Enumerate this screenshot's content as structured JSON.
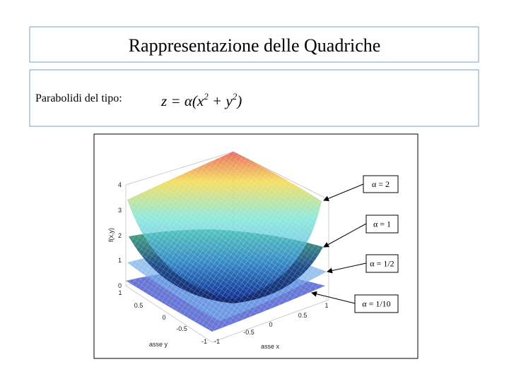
{
  "header": {
    "title": "Rappresentazione delle Quadriche"
  },
  "subtitle": {
    "text": "Parabolidi del tipo:",
    "formula": {
      "lhs": "z = α(x",
      "exp1": "2",
      "mid": " + y",
      "exp2": "2",
      "rhs": ")"
    }
  },
  "figure": {
    "z_axis": {
      "label": "f(x,y)",
      "ticks": [
        "4",
        "3",
        "2",
        "1",
        "0"
      ]
    },
    "y_axis": {
      "label": "asse y",
      "ticks": [
        "1",
        "0.5",
        "0",
        "-0.5",
        "-1"
      ]
    },
    "x_axis": {
      "label": "asse x",
      "ticks": [
        "-1",
        "-0.5",
        "0",
        "0.5",
        "1"
      ]
    },
    "callouts": [
      "α = 2",
      "α = 1",
      "α = 1/2",
      "α = 1/10"
    ]
  }
}
